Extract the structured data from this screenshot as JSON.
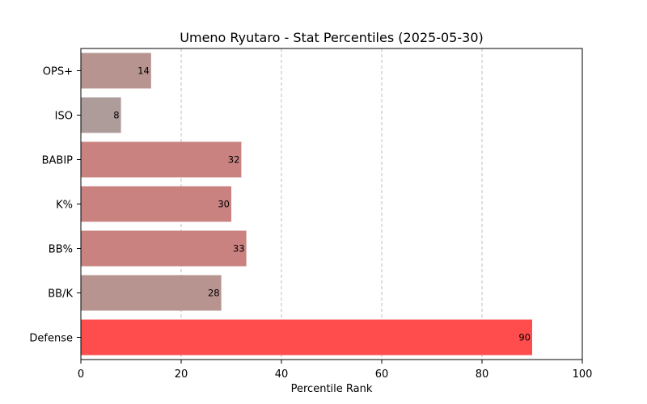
{
  "chart_data": {
    "type": "bar",
    "orientation": "horizontal",
    "title": "Umeno Ryutaro - Stat Percentiles (2025-05-30)",
    "xlabel": "Percentile Rank",
    "ylabel": "",
    "xlim": [
      0,
      100
    ],
    "xticks": [
      0,
      20,
      40,
      60,
      80,
      100
    ],
    "grid": "x-dashed",
    "categories": [
      "OPS+",
      "ISO",
      "BABIP",
      "K%",
      "BB%",
      "BB/K",
      "Defense"
    ],
    "values": [
      14,
      8,
      32,
      30,
      33,
      28,
      90
    ],
    "colors": [
      "#b89490",
      "#ae9c9a",
      "#c98280",
      "#c98280",
      "#c98280",
      "#b89490",
      "#ff4d4d"
    ]
  }
}
